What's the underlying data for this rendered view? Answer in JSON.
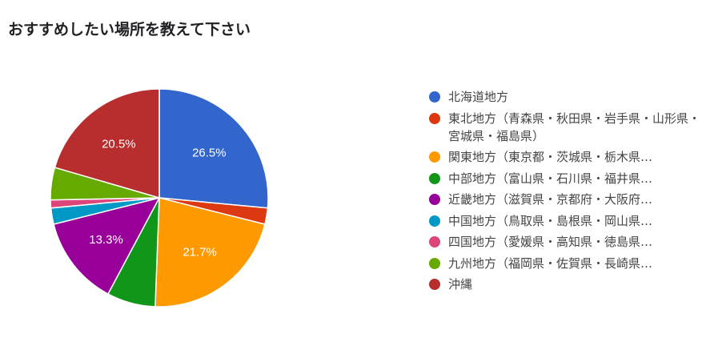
{
  "chart_data": {
    "type": "pie",
    "title": "おすすめしたい場所を教えて下さい",
    "start_angle_deg": 90,
    "direction": "clockwise",
    "legend_position": "right",
    "slices": [
      {
        "label": "北海道地方",
        "value": 26.5,
        "color": "#3366cc",
        "data_label": "26.5%"
      },
      {
        "label": "東北地方（青森県・秋田県・岩手県・山形県・宮城県・福島県）",
        "value": 2.4,
        "color": "#dc3912",
        "data_label": ""
      },
      {
        "label": "関東地方（東京都・茨城県・栃木県…",
        "value": 21.7,
        "color": "#ff9900",
        "data_label": "21.7%"
      },
      {
        "label": "中部地方（富山県・石川県・福井県…",
        "value": 7.2,
        "color": "#109618",
        "data_label": ""
      },
      {
        "label": "近畿地方（滋賀県・京都府・大阪府…",
        "value": 13.3,
        "color": "#990099",
        "data_label": "13.3%"
      },
      {
        "label": "中国地方（鳥取県・島根県・岡山県…",
        "value": 2.4,
        "color": "#0099c6",
        "data_label": ""
      },
      {
        "label": "四国地方（愛媛県・高知県・徳島県…",
        "value": 1.2,
        "color": "#dd4477",
        "data_label": ""
      },
      {
        "label": "九州地方（福岡県・佐賀県・長崎県…",
        "value": 4.8,
        "color": "#66aa00",
        "data_label": ""
      },
      {
        "label": "沖縄",
        "value": 20.5,
        "color": "#b82e2e",
        "data_label": "20.5%"
      }
    ]
  }
}
